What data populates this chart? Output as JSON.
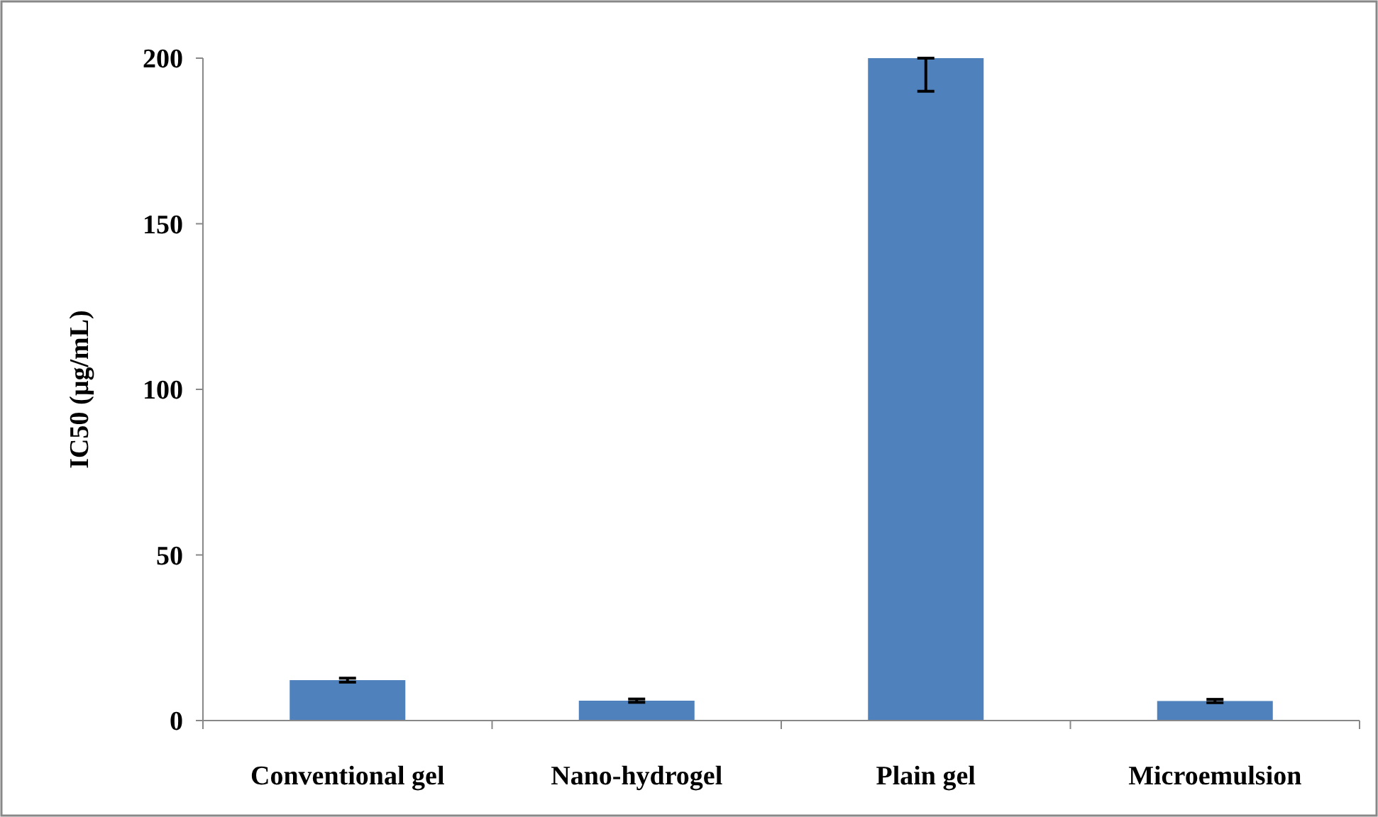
{
  "chart_data": {
    "type": "bar",
    "ylabel": "IC50 (µg/mL)",
    "categories": [
      "Conventional gel",
      "Nano-hydrogel",
      "Plain gel",
      "Microemulsion"
    ],
    "values": [
      12.2,
      6.0,
      200,
      5.9
    ],
    "errors": [
      0.6,
      0.5,
      [
        190,
        200
      ],
      0.5
    ],
    "color": "#4f81bd",
    "ylim": [
      0,
      200
    ],
    "yticks": [
      0,
      50,
      100,
      150,
      200
    ],
    "grid": false
  }
}
